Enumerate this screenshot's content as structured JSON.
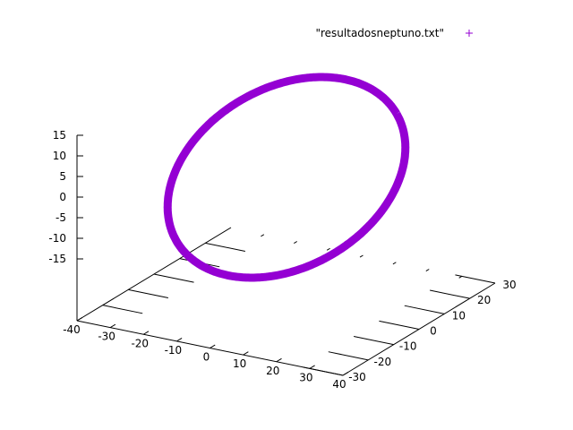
{
  "chart_data": {
    "type": "scatter",
    "projection": "3d",
    "title": "",
    "xlabel": "",
    "ylabel": "",
    "zlabel": "",
    "xlim": [
      -40,
      40
    ],
    "ylim": [
      -30,
      30
    ],
    "zlim": [
      -15,
      15
    ],
    "x_ticks": [
      "-40",
      "-30",
      "-20",
      "-10",
      "0",
      "10",
      "20",
      "30",
      "40"
    ],
    "y_ticks": [
      "-30",
      "-20",
      "-10",
      "0",
      "10",
      "20",
      "30"
    ],
    "z_ticks": [
      "15",
      "10",
      "5",
      "0",
      "-5",
      "-10",
      "-15"
    ],
    "grid": false,
    "legend_position": "top-right",
    "series": [
      {
        "name": "\"resultadosneptuno.txt\"",
        "color": "#9400d3",
        "marker": "plus",
        "shape": "closed orbit",
        "center": [
          0,
          0,
          0
        ],
        "semi_major": 30,
        "semi_minor": 30
      }
    ]
  }
}
